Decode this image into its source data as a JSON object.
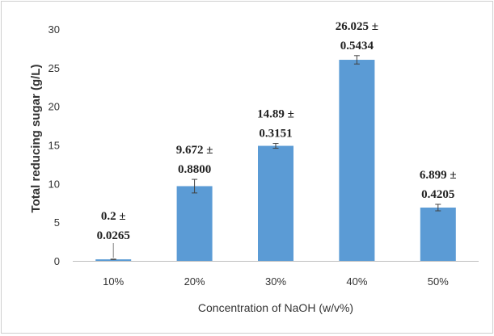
{
  "chart_data": {
    "type": "bar",
    "categories": [
      "10%",
      "20%",
      "30%",
      "40%",
      "50%"
    ],
    "values": [
      0.2,
      9.672,
      14.89,
      26.025,
      6.899
    ],
    "errors": [
      0.0265,
      0.88,
      0.3151,
      0.5434,
      0.4205
    ],
    "data_labels": [
      [
        "0.2 ±",
        "0.0265"
      ],
      [
        "9.672 ±",
        "0.8800"
      ],
      [
        "14.89 ±",
        "0.3151"
      ],
      [
        "26.025 ±",
        "0.5434"
      ],
      [
        "6.899 ±",
        "0.4205"
      ]
    ],
    "xlabel": "Concentration of NaOH (w/v%)",
    "ylabel": "Total reducing sugar (g/L)",
    "ylim": [
      0,
      30
    ],
    "yticks": [
      "0",
      "5",
      "10",
      "15",
      "20",
      "25",
      "30"
    ],
    "grid": false,
    "legend": "none",
    "bar_color": "#5B9BD5",
    "errorbar_color": "#404040"
  }
}
